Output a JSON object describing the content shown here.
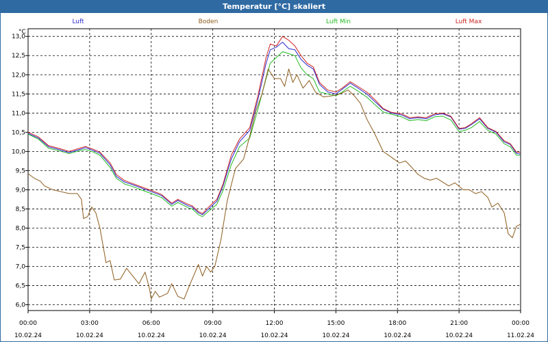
{
  "window": {
    "title": "Temperatur [°C] skaliert"
  },
  "chart_data": {
    "type": "line",
    "title": "Temperatur [°C] skaliert",
    "ylabel": "°C",
    "ylim": [
      5.85,
      13.2
    ],
    "xlim": [
      0,
      24
    ],
    "grid": true,
    "y_ticks": [
      "6,0",
      "6,5",
      "7,0",
      "7,5",
      "8,0",
      "8,5",
      "9,0",
      "9,5",
      "10,0",
      "10,5",
      "11,0",
      "11,5",
      "12,0",
      "12,5",
      "13,0"
    ],
    "x_ticks": [
      {
        "time": "00:00",
        "date": "10.02.24"
      },
      {
        "time": "03:00",
        "date": "10.02.24"
      },
      {
        "time": "06:00",
        "date": "10.02.24"
      },
      {
        "time": "09:00",
        "date": "10.02.24"
      },
      {
        "time": "12:00",
        "date": "10.02.24"
      },
      {
        "time": "15:00",
        "date": "10.02.24"
      },
      {
        "time": "18:00",
        "date": "10.02.24"
      },
      {
        "time": "21:00",
        "date": "10.02.24"
      },
      {
        "time": "00:00",
        "date": "11.02.24"
      }
    ],
    "legend": [
      {
        "name": "Luft",
        "color": "#2b2bcc"
      },
      {
        "name": "Boden",
        "color": "#8b5a1a"
      },
      {
        "name": "Luft Min",
        "color": "#22bb22"
      },
      {
        "name": "Luft Max",
        "color": "#cc2222"
      }
    ],
    "series": [
      {
        "name": "Luft",
        "color": "#2b2bcc",
        "points": [
          [
            0,
            10.47
          ],
          [
            0.5,
            10.35
          ],
          [
            1,
            10.12
          ],
          [
            1.5,
            10.05
          ],
          [
            2,
            9.97
          ],
          [
            2.5,
            10.05
          ],
          [
            2.8,
            10.1
          ],
          [
            3.2,
            10.02
          ],
          [
            3.5,
            9.95
          ],
          [
            4,
            9.65
          ],
          [
            4.3,
            9.35
          ],
          [
            4.7,
            9.2
          ],
          [
            5,
            9.15
          ],
          [
            5.5,
            9.05
          ],
          [
            6,
            8.95
          ],
          [
            6.5,
            8.85
          ],
          [
            7,
            8.62
          ],
          [
            7.3,
            8.72
          ],
          [
            7.8,
            8.58
          ],
          [
            8,
            8.55
          ],
          [
            8.3,
            8.4
          ],
          [
            8.5,
            8.35
          ],
          [
            8.8,
            8.5
          ],
          [
            9.2,
            8.7
          ],
          [
            9.5,
            9.1
          ],
          [
            9.9,
            9.8
          ],
          [
            10.3,
            10.25
          ],
          [
            10.8,
            10.55
          ],
          [
            11.2,
            11.35
          ],
          [
            11.6,
            12.3
          ],
          [
            11.8,
            12.65
          ],
          [
            12.1,
            12.72
          ],
          [
            12.4,
            12.85
          ],
          [
            12.7,
            12.68
          ],
          [
            13,
            12.65
          ],
          [
            13.3,
            12.4
          ],
          [
            13.6,
            12.25
          ],
          [
            13.9,
            12.15
          ],
          [
            14.2,
            11.75
          ],
          [
            14.6,
            11.55
          ],
          [
            15,
            11.5
          ],
          [
            15.3,
            11.62
          ],
          [
            15.7,
            11.78
          ],
          [
            16,
            11.68
          ],
          [
            16.5,
            11.5
          ],
          [
            16.9,
            11.3
          ],
          [
            17.3,
            11.1
          ],
          [
            17.7,
            11.0
          ],
          [
            18.2,
            10.95
          ],
          [
            18.6,
            10.85
          ],
          [
            19,
            10.88
          ],
          [
            19.4,
            10.85
          ],
          [
            19.8,
            10.95
          ],
          [
            20.2,
            10.98
          ],
          [
            20.6,
            10.9
          ],
          [
            21,
            10.58
          ],
          [
            21.3,
            10.6
          ],
          [
            21.6,
            10.7
          ],
          [
            22,
            10.85
          ],
          [
            22.4,
            10.6
          ],
          [
            22.8,
            10.5
          ],
          [
            23.2,
            10.25
          ],
          [
            23.5,
            10.18
          ],
          [
            23.8,
            9.95
          ],
          [
            24,
            9.93
          ]
        ]
      },
      {
        "name": "Luft Min",
        "color": "#22bb22",
        "points": [
          [
            0,
            10.45
          ],
          [
            0.5,
            10.32
          ],
          [
            1,
            10.08
          ],
          [
            1.5,
            10.02
          ],
          [
            2,
            9.94
          ],
          [
            2.5,
            10.02
          ],
          [
            2.8,
            10.05
          ],
          [
            3.2,
            9.98
          ],
          [
            3.5,
            9.9
          ],
          [
            4,
            9.58
          ],
          [
            4.3,
            9.3
          ],
          [
            4.7,
            9.15
          ],
          [
            5,
            9.1
          ],
          [
            5.5,
            9.0
          ],
          [
            6,
            8.9
          ],
          [
            6.5,
            8.8
          ],
          [
            7,
            8.57
          ],
          [
            7.3,
            8.67
          ],
          [
            7.8,
            8.53
          ],
          [
            8,
            8.5
          ],
          [
            8.3,
            8.35
          ],
          [
            8.5,
            8.3
          ],
          [
            8.8,
            8.44
          ],
          [
            9.2,
            8.62
          ],
          [
            9.5,
            8.98
          ],
          [
            9.9,
            9.65
          ],
          [
            10.3,
            10.12
          ],
          [
            10.8,
            10.35
          ],
          [
            11.2,
            11.1
          ],
          [
            11.6,
            11.9
          ],
          [
            11.8,
            12.3
          ],
          [
            12.1,
            12.45
          ],
          [
            12.4,
            12.6
          ],
          [
            12.7,
            12.55
          ],
          [
            13,
            12.5
          ],
          [
            13.3,
            12.18
          ],
          [
            13.6,
            12.0
          ],
          [
            13.9,
            11.9
          ],
          [
            14.2,
            11.55
          ],
          [
            14.6,
            11.5
          ],
          [
            15,
            11.45
          ],
          [
            15.3,
            11.55
          ],
          [
            15.7,
            11.7
          ],
          [
            16,
            11.6
          ],
          [
            16.5,
            11.42
          ],
          [
            16.9,
            11.22
          ],
          [
            17.3,
            11.03
          ],
          [
            17.7,
            10.97
          ],
          [
            18.2,
            10.9
          ],
          [
            18.6,
            10.8
          ],
          [
            19,
            10.83
          ],
          [
            19.4,
            10.8
          ],
          [
            19.8,
            10.9
          ],
          [
            20.2,
            10.92
          ],
          [
            20.6,
            10.82
          ],
          [
            21,
            10.52
          ],
          [
            21.3,
            10.55
          ],
          [
            21.6,
            10.62
          ],
          [
            22,
            10.78
          ],
          [
            22.4,
            10.55
          ],
          [
            22.8,
            10.45
          ],
          [
            23.2,
            10.2
          ],
          [
            23.5,
            10.12
          ],
          [
            23.8,
            9.9
          ],
          [
            24,
            9.9
          ]
        ]
      },
      {
        "name": "Luft Max",
        "color": "#cc2222",
        "points": [
          [
            0,
            10.5
          ],
          [
            0.5,
            10.38
          ],
          [
            1,
            10.15
          ],
          [
            1.5,
            10.08
          ],
          [
            2,
            10.0
          ],
          [
            2.5,
            10.08
          ],
          [
            2.8,
            10.13
          ],
          [
            3.2,
            10.05
          ],
          [
            3.5,
            9.98
          ],
          [
            4,
            9.7
          ],
          [
            4.3,
            9.4
          ],
          [
            4.7,
            9.24
          ],
          [
            5,
            9.18
          ],
          [
            5.5,
            9.08
          ],
          [
            6,
            8.98
          ],
          [
            6.5,
            8.88
          ],
          [
            7,
            8.65
          ],
          [
            7.3,
            8.75
          ],
          [
            7.8,
            8.62
          ],
          [
            8,
            8.58
          ],
          [
            8.3,
            8.43
          ],
          [
            8.5,
            8.38
          ],
          [
            8.8,
            8.55
          ],
          [
            9.2,
            8.75
          ],
          [
            9.5,
            9.15
          ],
          [
            9.9,
            9.9
          ],
          [
            10.3,
            10.32
          ],
          [
            10.8,
            10.62
          ],
          [
            11.2,
            11.45
          ],
          [
            11.6,
            12.45
          ],
          [
            11.8,
            12.8
          ],
          [
            12.1,
            12.75
          ],
          [
            12.4,
            13.0
          ],
          [
            12.7,
            12.9
          ],
          [
            13,
            12.75
          ],
          [
            13.3,
            12.5
          ],
          [
            13.6,
            12.3
          ],
          [
            13.9,
            12.2
          ],
          [
            14.2,
            11.8
          ],
          [
            14.6,
            11.6
          ],
          [
            15,
            11.55
          ],
          [
            15.3,
            11.65
          ],
          [
            15.7,
            11.82
          ],
          [
            16,
            11.72
          ],
          [
            16.5,
            11.55
          ],
          [
            16.9,
            11.35
          ],
          [
            17.3,
            11.12
          ],
          [
            17.7,
            11.02
          ],
          [
            18.2,
            10.98
          ],
          [
            18.6,
            10.88
          ],
          [
            19,
            10.9
          ],
          [
            19.4,
            10.88
          ],
          [
            19.8,
            10.98
          ],
          [
            20.2,
            11.0
          ],
          [
            20.6,
            10.92
          ],
          [
            21,
            10.6
          ],
          [
            21.3,
            10.62
          ],
          [
            21.6,
            10.72
          ],
          [
            22,
            10.88
          ],
          [
            22.4,
            10.62
          ],
          [
            22.8,
            10.52
          ],
          [
            23.2,
            10.28
          ],
          [
            23.5,
            10.2
          ],
          [
            23.8,
            9.98
          ],
          [
            24,
            9.98
          ]
        ]
      },
      {
        "name": "Boden",
        "color": "#8b5a1a",
        "points": [
          [
            0,
            9.42
          ],
          [
            0.3,
            9.3
          ],
          [
            0.6,
            9.22
          ],
          [
            0.8,
            9.1
          ],
          [
            1.2,
            9.0
          ],
          [
            1.6,
            8.95
          ],
          [
            2,
            8.9
          ],
          [
            2.4,
            8.9
          ],
          [
            2.6,
            8.75
          ],
          [
            2.7,
            8.25
          ],
          [
            2.9,
            8.3
          ],
          [
            3.1,
            8.55
          ],
          [
            3.3,
            8.4
          ],
          [
            3.5,
            8.0
          ],
          [
            3.8,
            7.1
          ],
          [
            4,
            7.15
          ],
          [
            4.2,
            6.65
          ],
          [
            4.5,
            6.67
          ],
          [
            4.8,
            6.95
          ],
          [
            5.1,
            6.75
          ],
          [
            5.4,
            6.55
          ],
          [
            5.7,
            6.85
          ],
          [
            5.9,
            6.45
          ],
          [
            6.0,
            6.15
          ],
          [
            6.2,
            6.35
          ],
          [
            6.4,
            6.2
          ],
          [
            6.8,
            6.3
          ],
          [
            7.0,
            6.55
          ],
          [
            7.3,
            6.22
          ],
          [
            7.6,
            6.15
          ],
          [
            7.9,
            6.55
          ],
          [
            8.1,
            6.8
          ],
          [
            8.3,
            7.05
          ],
          [
            8.5,
            6.75
          ],
          [
            8.7,
            7.0
          ],
          [
            8.9,
            6.85
          ],
          [
            9.1,
            7.0
          ],
          [
            9.4,
            7.7
          ],
          [
            9.7,
            8.7
          ],
          [
            10.1,
            9.55
          ],
          [
            10.5,
            9.8
          ],
          [
            10.8,
            10.4
          ],
          [
            11.1,
            11.05
          ],
          [
            11.4,
            11.5
          ],
          [
            11.7,
            12.15
          ],
          [
            12.0,
            11.9
          ],
          [
            12.3,
            11.9
          ],
          [
            12.5,
            11.7
          ],
          [
            12.7,
            12.15
          ],
          [
            12.9,
            11.8
          ],
          [
            13.1,
            12.0
          ],
          [
            13.4,
            11.65
          ],
          [
            13.7,
            11.85
          ],
          [
            14.0,
            11.55
          ],
          [
            14.4,
            11.42
          ],
          [
            14.8,
            11.45
          ],
          [
            15.2,
            11.5
          ],
          [
            15.6,
            11.6
          ],
          [
            15.9,
            11.45
          ],
          [
            16.2,
            11.25
          ],
          [
            16.5,
            10.85
          ],
          [
            16.9,
            10.45
          ],
          [
            17.3,
            10.0
          ],
          [
            17.7,
            9.85
          ],
          [
            18.1,
            9.7
          ],
          [
            18.4,
            9.75
          ],
          [
            18.7,
            9.58
          ],
          [
            19.0,
            9.4
          ],
          [
            19.3,
            9.3
          ],
          [
            19.6,
            9.25
          ],
          [
            19.9,
            9.3
          ],
          [
            20.2,
            9.2
          ],
          [
            20.5,
            9.1
          ],
          [
            20.8,
            9.18
          ],
          [
            21.2,
            9.0
          ],
          [
            21.5,
            9.0
          ],
          [
            21.8,
            8.9
          ],
          [
            22.1,
            8.95
          ],
          [
            22.4,
            8.8
          ],
          [
            22.6,
            8.55
          ],
          [
            22.9,
            8.65
          ],
          [
            23.2,
            8.4
          ],
          [
            23.4,
            7.85
          ],
          [
            23.6,
            7.75
          ],
          [
            23.8,
            8.05
          ],
          [
            24,
            8.1
          ]
        ]
      }
    ]
  }
}
